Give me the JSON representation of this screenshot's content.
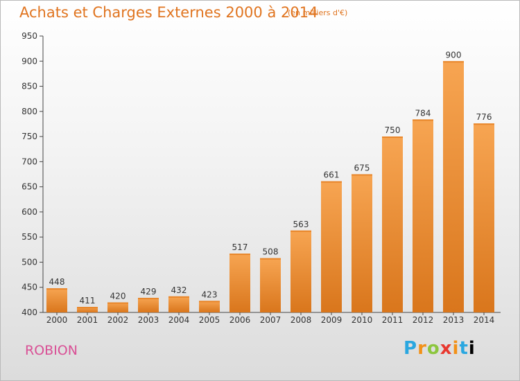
{
  "header": {
    "title": "Achats et Charges Externes 2000 à 2014",
    "unit_note": "(en milliers d'€)"
  },
  "footer": {
    "commune": "ROBION",
    "logo_text": "Proxiti"
  },
  "colors": {
    "title": "#e0741f",
    "bar_light": "#f7a552",
    "bar_dark": "#d9761c",
    "commune": "#d94f95"
  },
  "chart_data": {
    "type": "bar",
    "title": "Achats et Charges Externes 2000 à 2014",
    "xlabel": "",
    "ylabel": "",
    "ylim": [
      400,
      950
    ],
    "yticks": [
      400,
      450,
      500,
      550,
      600,
      650,
      700,
      750,
      800,
      850,
      900,
      950
    ],
    "grid": false,
    "categories": [
      "2000",
      "2001",
      "2002",
      "2003",
      "2004",
      "2005",
      "2006",
      "2007",
      "2008",
      "2009",
      "2010",
      "2011",
      "2012",
      "2013",
      "2014"
    ],
    "values": [
      448,
      411,
      420,
      429,
      432,
      423,
      517,
      508,
      563,
      661,
      675,
      750,
      784,
      900,
      776
    ],
    "data_labels": [
      "448",
      "411",
      "420",
      "429",
      "432",
      "423",
      "517",
      "508",
      "563",
      "661",
      "675",
      "750",
      "784",
      "900",
      "776"
    ]
  }
}
